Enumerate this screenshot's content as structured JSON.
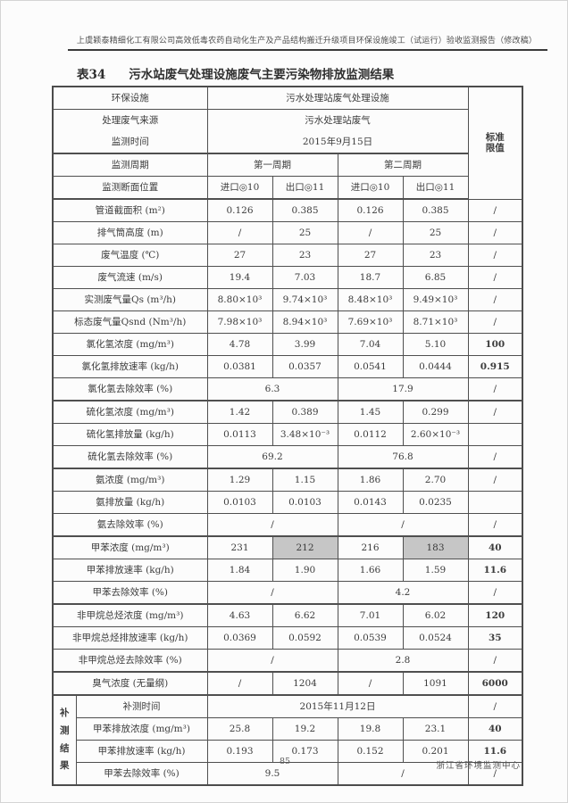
{
  "header": {
    "doc_title": "上虞颖泰精细化工有限公司高效低毒农药自动化生产及产品结构搬迁升级项目环保设施竣工（试运行）验收监测报告（修改稿）",
    "caption_prefix": "表34",
    "caption_text": "污水站废气处理设施废气主要污染物排放监测结果"
  },
  "colors": {
    "highlight_gray": "#c6c6c6",
    "border": "#4f4f4f",
    "text": "#3c3c3c"
  },
  "table": {
    "std_label": "标准\n限值",
    "rows": [
      {
        "k": "info",
        "label": "环保设施",
        "value": "污水处理站废气处理设施"
      },
      {
        "k": "info",
        "label": "处理废气来源",
        "value": "污水处理站废气",
        "nb": true
      },
      {
        "k": "info",
        "label": "监测时间",
        "value": "2015年9月15日",
        "thick": true
      },
      {
        "k": "period",
        "label": "监测周期",
        "p1": "第一周期",
        "p2": "第二周期"
      },
      {
        "k": "pos",
        "label": "监测断面位置",
        "v": [
          "进口◎10",
          "出口◎11",
          "进口◎10",
          "出口◎11"
        ],
        "thick": true
      },
      {
        "k": "d",
        "label": "管道截面积 (m²)",
        "v": [
          "0.126",
          "0.385",
          "0.126",
          "0.385"
        ],
        "limit": "/"
      },
      {
        "k": "d",
        "label": "排气筒高度 (m)",
        "v": [
          "/",
          "25",
          "/",
          "25"
        ],
        "limit": "/"
      },
      {
        "k": "d",
        "label": "废气温度 (℃)",
        "v": [
          "27",
          "23",
          "27",
          "23"
        ],
        "limit": "/"
      },
      {
        "k": "d",
        "label": "废气流速 (m/s)",
        "v": [
          "19.4",
          "7.03",
          "18.7",
          "6.85"
        ],
        "limit": "/"
      },
      {
        "k": "d",
        "label": "实测废气量Qs (m³/h)",
        "v": [
          "8.80×10³",
          "9.74×10³",
          "8.48×10³",
          "9.49×10³"
        ],
        "limit": "/"
      },
      {
        "k": "d",
        "label": "标态废气量Qsnd (Nm³/h)",
        "v": [
          "7.98×10³",
          "8.94×10³",
          "7.69×10³",
          "8.71×10³"
        ],
        "limit": "/"
      },
      {
        "k": "d",
        "label": "氯化氢浓度 (mg/m³)",
        "v": [
          "4.78",
          "3.99",
          "7.04",
          "5.10"
        ],
        "limit": "100",
        "lb": true
      },
      {
        "k": "d",
        "label": "氯化氢排放速率 (kg/h)",
        "v": [
          "0.0381",
          "0.0357",
          "0.0541",
          "0.0444"
        ],
        "limit": "0.915",
        "lb": true
      },
      {
        "k": "s2",
        "label": "氯化氢去除效率 (%)",
        "v": [
          "6.3",
          "17.9"
        ],
        "limit": "/",
        "thick": true
      },
      {
        "k": "d",
        "label": "硫化氢浓度 (mg/m³)",
        "v": [
          "1.42",
          "0.389",
          "1.45",
          "0.299"
        ],
        "limit": "/"
      },
      {
        "k": "d",
        "label": "硫化氢排放量 (kg/h)",
        "v": [
          "0.0113",
          "3.48×10⁻³",
          "0.0112",
          "2.60×10⁻³"
        ],
        "limit": ""
      },
      {
        "k": "s2",
        "label": "硫化氢去除效率 (%)",
        "v": [
          "69.2",
          "76.8"
        ],
        "limit": "/",
        "thick": true
      },
      {
        "k": "d",
        "label": "氨浓度 (mg/m³)",
        "v": [
          "1.29",
          "1.15",
          "1.86",
          "2.70"
        ],
        "limit": "/"
      },
      {
        "k": "d",
        "label": "氨排放量 (kg/h)",
        "v": [
          "0.0103",
          "0.0103",
          "0.0143",
          "0.0235"
        ],
        "limit": ""
      },
      {
        "k": "s2",
        "label": "氨去除效率 (%)",
        "v": [
          "/",
          "/"
        ],
        "limit": "/",
        "thick": true
      },
      {
        "k": "d",
        "label": "甲苯浓度 (mg/m³)",
        "v": [
          "231",
          "212",
          "216",
          "183"
        ],
        "gray": [
          1,
          3
        ],
        "limit": "40",
        "lb": true
      },
      {
        "k": "d",
        "label": "甲苯排放速率 (kg/h)",
        "v": [
          "1.84",
          "1.90",
          "1.66",
          "1.59"
        ],
        "limit": "11.6",
        "lb": true
      },
      {
        "k": "s2",
        "label": "甲苯去除效率 (%)",
        "v": [
          "/",
          "4.2"
        ],
        "limit": "/",
        "thick": true
      },
      {
        "k": "d",
        "label": "非甲烷总烃浓度 (mg/m³)",
        "v": [
          "4.63",
          "6.62",
          "7.01",
          "6.02"
        ],
        "limit": "120",
        "lb": true
      },
      {
        "k": "d",
        "label": "非甲烷总烃排放速率 (kg/h)",
        "v": [
          "0.0369",
          "0.0592",
          "0.0539",
          "0.0524"
        ],
        "limit": "35",
        "lb": true
      },
      {
        "k": "s2",
        "label": "非甲烷总烃去除效率 (%)",
        "v": [
          "/",
          "2.8"
        ],
        "limit": "/",
        "thick": true
      },
      {
        "k": "d",
        "label": "臭气浓度 (无量纲)",
        "v": [
          "/",
          "1204",
          "/",
          "1091"
        ],
        "limit": "6000",
        "lb": true,
        "thick": true
      }
    ],
    "supplement": {
      "strip_label": "补测结果",
      "rows": [
        {
          "k": "infoL",
          "label": "补测时间",
          "value": "2015年11月12日",
          "limit": "/"
        },
        {
          "k": "d",
          "label": "甲苯排放浓度 (mg/m³)",
          "v": [
            "25.8",
            "19.2",
            "19.8",
            "23.1"
          ],
          "limit": "40",
          "lb": true
        },
        {
          "k": "d",
          "label": "甲苯排放速率 (kg/h)",
          "v": [
            "0.193",
            "0.173",
            "0.152",
            "0.201"
          ],
          "limit": "11.6",
          "lb": true
        },
        {
          "k": "s2",
          "label": "甲苯去除效率 (%)",
          "v": [
            "9.5",
            "/"
          ],
          "limit": "/"
        }
      ]
    }
  },
  "footer": {
    "page_number": "85",
    "org": "浙江省环境监测中心"
  }
}
